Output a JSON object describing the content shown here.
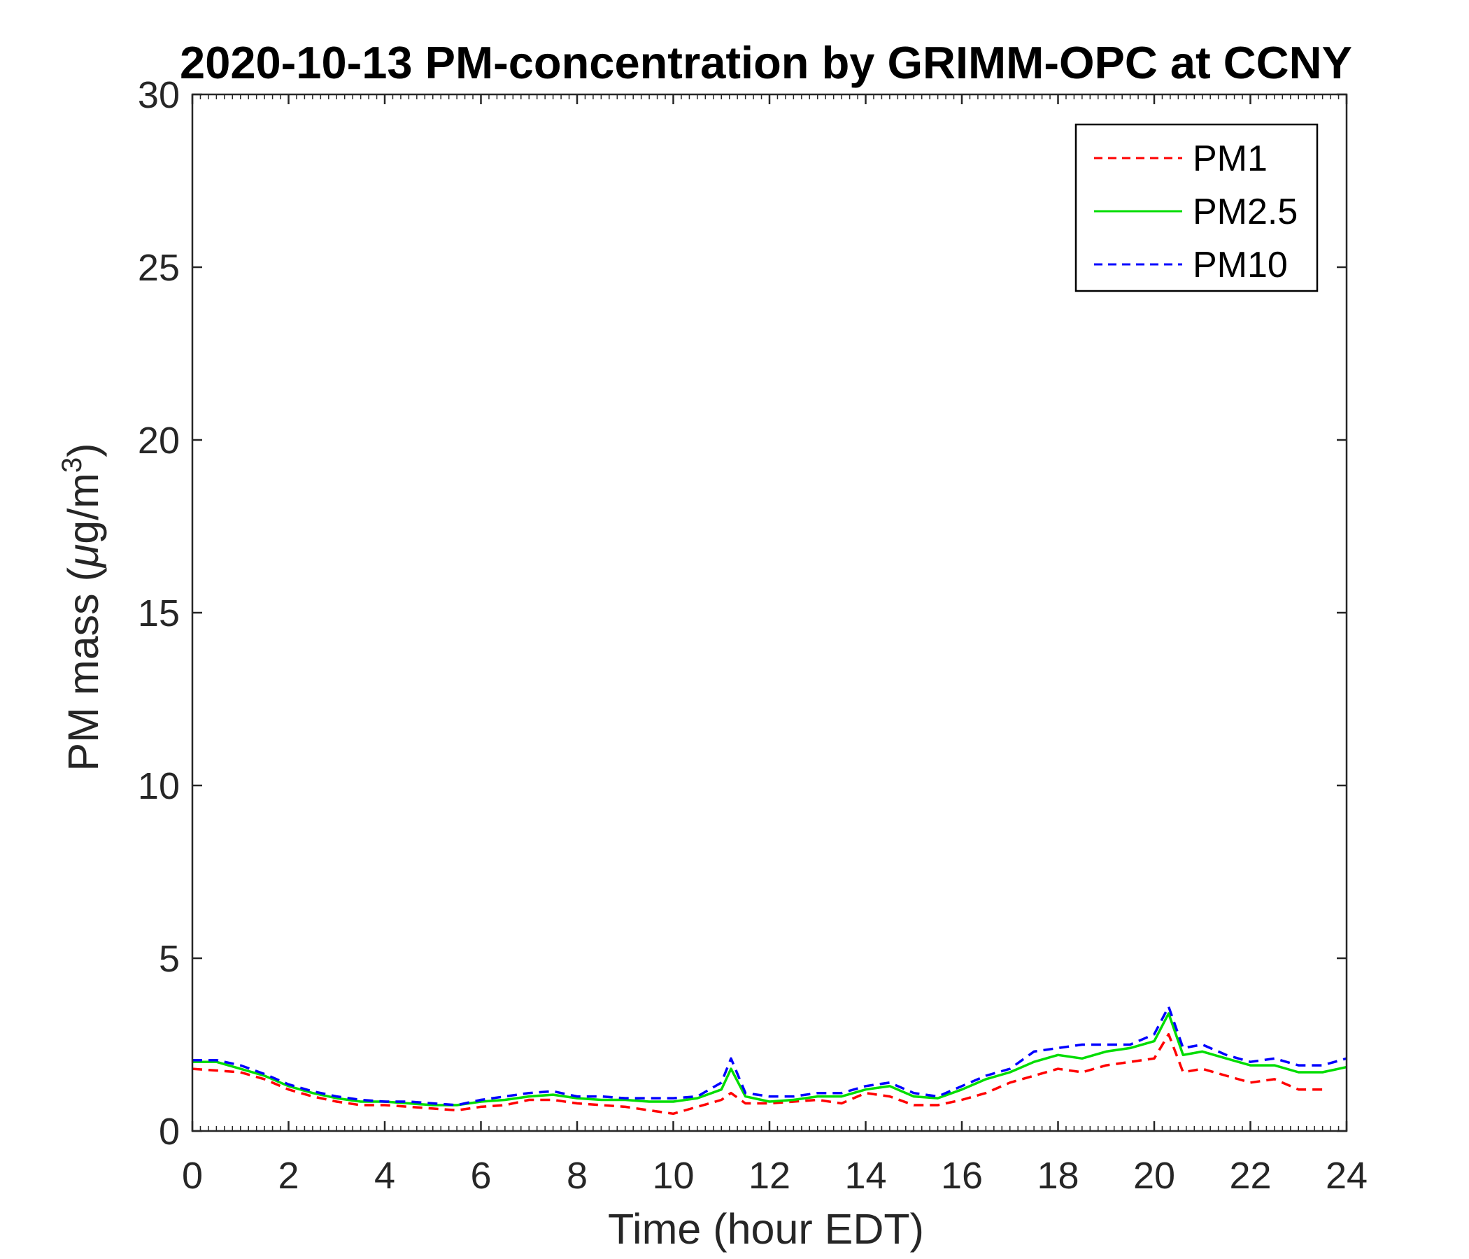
{
  "chart_data": {
    "type": "line",
    "title": "2020-10-13 PM-concentration by GRIMM-OPC at CCNY",
    "xlabel": "Time (hour EDT)",
    "ylabel": "PM mass (μg/m³)",
    "ylabel_parts": {
      "prefix": "PM mass (",
      "mu": "μ",
      "mid": "g/m",
      "sup": "3",
      "suffix": ")"
    },
    "xlim": [
      0,
      24
    ],
    "ylim": [
      0,
      30
    ],
    "xticks": [
      "0",
      "2",
      "4",
      "6",
      "8",
      "10",
      "12",
      "14",
      "16",
      "18",
      "20",
      "22",
      "24"
    ],
    "yticks": [
      "0",
      "5",
      "10",
      "15",
      "20",
      "25",
      "30"
    ],
    "grid": false,
    "legend_position": "top-right",
    "series": [
      {
        "name": "PM1",
        "color": "#ff0000",
        "dash": "dashed",
        "x": [
          0,
          0.5,
          1,
          1.5,
          2,
          2.5,
          3,
          3.5,
          4,
          4.5,
          5,
          5.5,
          6,
          6.5,
          7,
          7.5,
          8,
          8.5,
          9,
          9.5,
          10,
          10.5,
          11,
          11.2,
          11.5,
          12,
          12.5,
          13,
          13.5,
          14,
          14.5,
          15,
          15.5,
          16,
          16.5,
          17,
          17.5,
          18,
          18.5,
          19,
          19.5,
          20,
          20.3,
          20.6,
          21,
          21.5,
          22,
          22.5,
          23,
          23.5
        ],
        "y": [
          1.8,
          1.75,
          1.7,
          1.5,
          1.2,
          1.0,
          0.85,
          0.75,
          0.75,
          0.7,
          0.65,
          0.6,
          0.7,
          0.75,
          0.9,
          0.9,
          0.8,
          0.75,
          0.7,
          0.6,
          0.5,
          0.7,
          0.9,
          1.1,
          0.8,
          0.8,
          0.85,
          0.9,
          0.8,
          1.1,
          1.0,
          0.75,
          0.75,
          0.9,
          1.1,
          1.4,
          1.6,
          1.8,
          1.7,
          1.9,
          2.0,
          2.1,
          2.8,
          1.7,
          1.8,
          1.6,
          1.4,
          1.5,
          1.2,
          1.2
        ]
      },
      {
        "name": "PM2.5",
        "color": "#00dd00",
        "dash": "solid",
        "x": [
          0,
          0.5,
          1,
          1.5,
          2,
          2.5,
          3,
          3.5,
          4,
          4.5,
          5,
          5.5,
          6,
          6.5,
          7,
          7.5,
          8,
          8.5,
          9,
          9.5,
          10,
          10.5,
          11,
          11.2,
          11.5,
          12,
          12.5,
          13,
          13.5,
          14,
          14.5,
          15,
          15.5,
          16,
          16.5,
          17,
          17.5,
          18,
          18.5,
          19,
          19.5,
          20,
          20.3,
          20.6,
          21,
          21.5,
          22,
          22.5,
          23,
          23.5,
          24
        ],
        "y": [
          2.0,
          2.0,
          1.8,
          1.6,
          1.3,
          1.1,
          0.95,
          0.85,
          0.85,
          0.8,
          0.75,
          0.75,
          0.85,
          0.9,
          1.0,
          1.05,
          0.95,
          0.9,
          0.9,
          0.85,
          0.85,
          0.95,
          1.2,
          1.8,
          1.0,
          0.85,
          0.9,
          1.0,
          1.0,
          1.2,
          1.3,
          1.0,
          0.95,
          1.2,
          1.5,
          1.7,
          2.0,
          2.2,
          2.1,
          2.3,
          2.4,
          2.6,
          3.4,
          2.2,
          2.3,
          2.1,
          1.9,
          1.9,
          1.7,
          1.7,
          1.85
        ]
      },
      {
        "name": "PM10",
        "color": "#0000ff",
        "dash": "dashed",
        "x": [
          0,
          0.5,
          1,
          1.5,
          2,
          2.5,
          3,
          3.5,
          4,
          4.5,
          5,
          5.5,
          6,
          6.5,
          7,
          7.5,
          8,
          8.5,
          9,
          9.5,
          10,
          10.5,
          11,
          11.2,
          11.5,
          12,
          12.5,
          13,
          13.5,
          14,
          14.5,
          15,
          15.5,
          16,
          16.5,
          17,
          17.5,
          18,
          18.5,
          19,
          19.5,
          20,
          20.3,
          20.6,
          21,
          21.5,
          22,
          22.5,
          23,
          23.5,
          24
        ],
        "y": [
          2.05,
          2.05,
          1.9,
          1.65,
          1.35,
          1.15,
          1.0,
          0.9,
          0.85,
          0.85,
          0.8,
          0.75,
          0.9,
          1.0,
          1.1,
          1.15,
          1.0,
          1.0,
          0.95,
          0.95,
          0.95,
          1.0,
          1.4,
          2.1,
          1.1,
          1.0,
          1.0,
          1.1,
          1.1,
          1.3,
          1.4,
          1.1,
          1.0,
          1.3,
          1.6,
          1.8,
          2.3,
          2.4,
          2.5,
          2.5,
          2.5,
          2.8,
          3.6,
          2.4,
          2.5,
          2.2,
          2.0,
          2.1,
          1.9,
          1.9,
          2.1
        ]
      }
    ]
  }
}
